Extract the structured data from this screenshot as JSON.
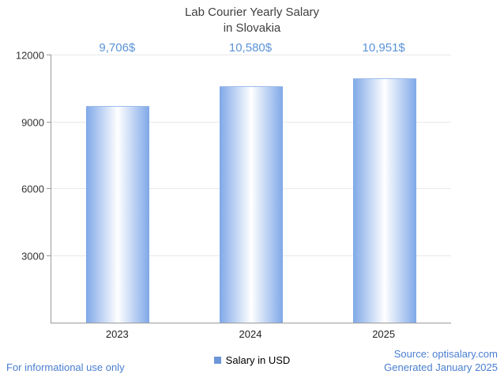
{
  "title": {
    "line1": "Lab Courier Yearly Salary",
    "line2": "in Slovakia"
  },
  "chart_data": {
    "type": "bar",
    "title": "Lab Courier Yearly Salary in Slovakia",
    "categories": [
      "2023",
      "2024",
      "2025"
    ],
    "values": [
      9706,
      10580,
      10951
    ],
    "value_labels": [
      "9,706$",
      "10,580$",
      "10,951$"
    ],
    "series_name": "Salary in USD",
    "xlabel": "",
    "ylabel": "",
    "ylim": [
      0,
      12000
    ],
    "yticks": [
      3000,
      6000,
      9000,
      12000
    ],
    "grid": "horizontal",
    "legend_position": "bottom-center"
  },
  "legend": {
    "label": "Salary in USD"
  },
  "footer": {
    "disclaimer": "For informational use only",
    "source": "Source: optisalary.com",
    "generated": "Generated January 2025"
  },
  "colors": {
    "value_label": "#5b93d8",
    "footer_text": "#4a7ed0",
    "legend_swatch": "#6d96d8",
    "bar_edge": "#7fa8e8",
    "bar_center": "#ffffff",
    "axis": "#9a9a9a",
    "gridline": "#e9e9e9",
    "title_text": "#3f3f3f"
  }
}
